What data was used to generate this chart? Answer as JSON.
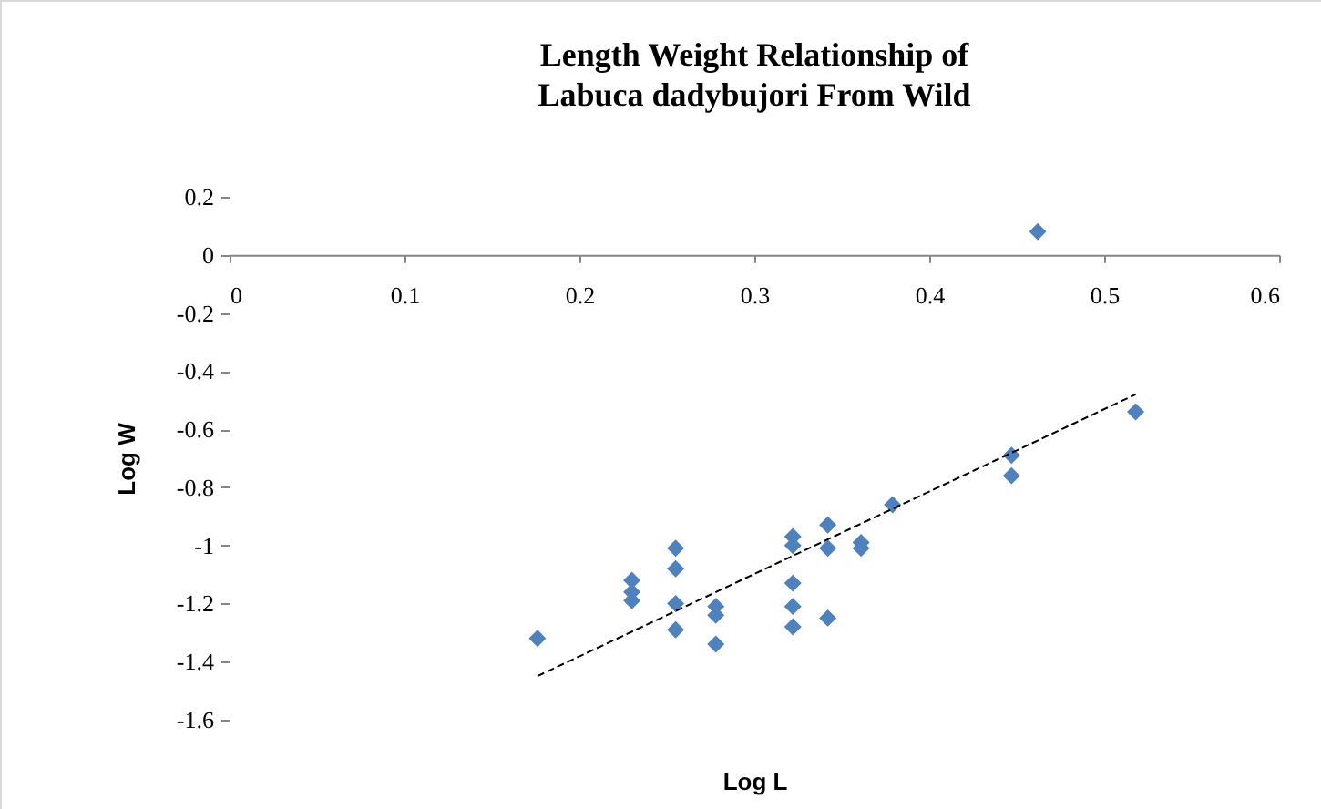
{
  "chart_data": {
    "type": "scatter",
    "title": "Length Weight Relationship of\nLabuca dadybujori From Wild",
    "xlabel": "Log L",
    "ylabel": "Log W",
    "xlim": [
      0,
      0.6
    ],
    "xticks": [
      0,
      0.1,
      0.2,
      0.3,
      0.4,
      0.5,
      0.6
    ],
    "ylim": [
      -1.6,
      0.2
    ],
    "yticks": [
      0.2,
      0,
      -0.2,
      -0.4,
      -0.6,
      -0.8,
      -1,
      -1.2,
      -1.4,
      -1.6
    ],
    "grid": false,
    "marker": "diamond",
    "series": [
      {
        "color": "#4f81bd",
        "x": [
          0.176,
          0.23,
          0.23,
          0.23,
          0.255,
          0.255,
          0.255,
          0.255,
          0.278,
          0.278,
          0.278,
          0.322,
          0.322,
          0.322,
          0.322,
          0.322,
          0.342,
          0.342,
          0.342,
          0.361,
          0.361,
          0.379,
          0.447,
          0.447,
          0.518,
          0.462
        ],
        "values": [
          -1.32,
          -1.12,
          -1.16,
          -1.19,
          -1.01,
          -1.08,
          -1.2,
          -1.29,
          -1.21,
          -1.24,
          -1.34,
          -0.97,
          -1.0,
          -1.13,
          -1.21,
          -1.28,
          -0.93,
          -1.01,
          -1.25,
          -0.99,
          -1.01,
          -0.86,
          -0.69,
          -0.76,
          -0.54,
          0.08
        ]
      },
      {
        "type": "line",
        "color": "#000000",
        "line_style": "dashed",
        "marker": "none",
        "x": [
          0.176,
          0.518
        ],
        "values": [
          -1.45,
          -0.48
        ]
      }
    ]
  }
}
